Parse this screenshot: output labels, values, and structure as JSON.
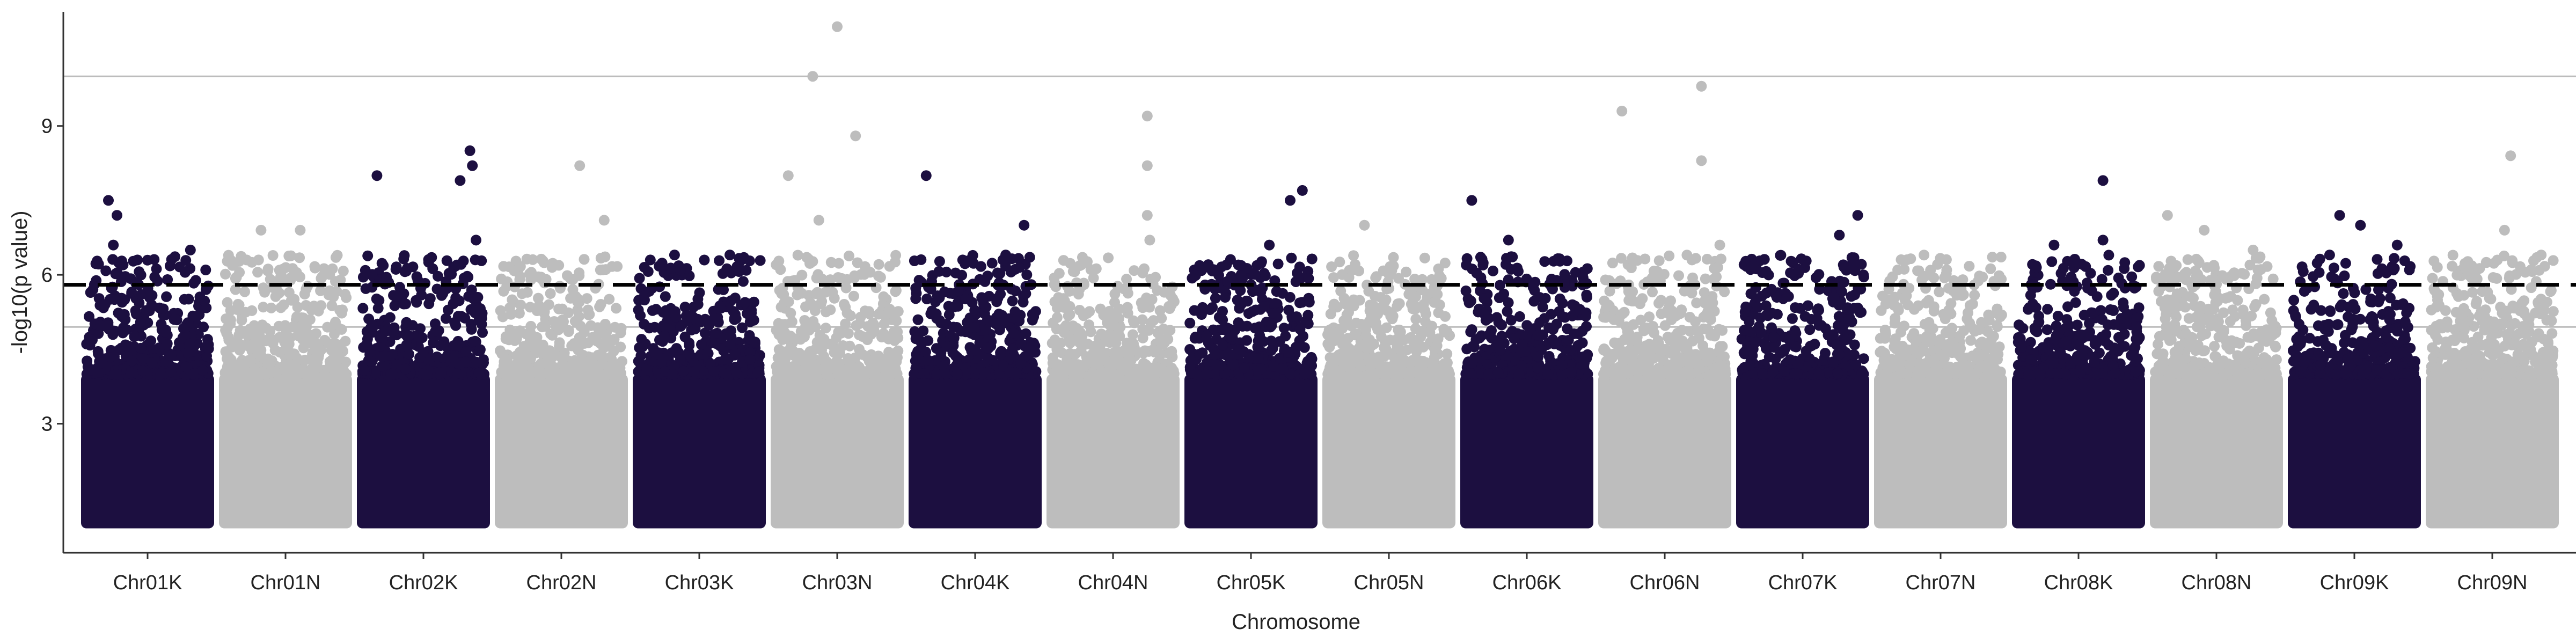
{
  "chart_data": {
    "type": "scatter",
    "subtype": "manhattan",
    "xlabel": "Chromosome",
    "ylabel": "-log10(p value)",
    "categories": [
      "Chr01K",
      "Chr01N",
      "Chr02K",
      "Chr02N",
      "Chr03K",
      "Chr03N",
      "Chr04K",
      "Chr04N",
      "Chr05K",
      "Chr05N",
      "Chr06K",
      "Chr06N",
      "Chr07K",
      "Chr07N",
      "Chr08K",
      "Chr08N",
      "Chr09K",
      "Chr09N"
    ],
    "yticks": [
      "3",
      "6",
      "9"
    ],
    "ylim": [
      0.4,
      11.3
    ],
    "grid": false,
    "legend": "none",
    "point_density_note_free": true,
    "colors": {
      "dark": "#1c0f40",
      "light": "#bdbdbd",
      "axis": "#333333",
      "hline": "#bbbbbb",
      "threshold": "#000000"
    },
    "color_pattern": [
      "dark",
      "light",
      "dark",
      "light",
      "dark",
      "light",
      "dark",
      "light",
      "dark",
      "light",
      "dark",
      "light",
      "dark",
      "light",
      "dark",
      "light",
      "dark",
      "light"
    ],
    "reference_lines": [
      {
        "y": 10.0,
        "style": "solid",
        "color": "hline"
      },
      {
        "y": 5.8,
        "style": "dashed",
        "color": "threshold"
      },
      {
        "y": 4.95,
        "style": "solid",
        "color": "hline"
      }
    ],
    "base_band": {
      "min": 1.0,
      "max": 4.0
    },
    "top_hits": [
      {
        "chr": "Chr01K",
        "pos": 0.18,
        "y": 7.5
      },
      {
        "chr": "Chr01K",
        "pos": 0.25,
        "y": 7.2
      },
      {
        "chr": "Chr01K",
        "pos": 0.22,
        "y": 6.6
      },
      {
        "chr": "Chr01K",
        "pos": 0.85,
        "y": 6.5
      },
      {
        "chr": "Chr01K",
        "pos": 0.3,
        "y": 6.2
      },
      {
        "chr": "Chr01N",
        "pos": 0.3,
        "y": 6.9
      },
      {
        "chr": "Chr01N",
        "pos": 0.62,
        "y": 6.9
      },
      {
        "chr": "Chr01N",
        "pos": 0.28,
        "y": 6.3
      },
      {
        "chr": "Chr02K",
        "pos": 0.12,
        "y": 8.0
      },
      {
        "chr": "Chr02K",
        "pos": 0.88,
        "y": 8.5
      },
      {
        "chr": "Chr02K",
        "pos": 0.8,
        "y": 7.9
      },
      {
        "chr": "Chr02K",
        "pos": 0.9,
        "y": 8.2
      },
      {
        "chr": "Chr02K",
        "pos": 0.93,
        "y": 6.7
      },
      {
        "chr": "Chr02N",
        "pos": 0.65,
        "y": 8.2
      },
      {
        "chr": "Chr02N",
        "pos": 0.85,
        "y": 7.1
      },
      {
        "chr": "Chr03K",
        "pos": 0.1,
        "y": 6.3
      },
      {
        "chr": "Chr03K",
        "pos": 0.75,
        "y": 6.4
      },
      {
        "chr": "Chr03N",
        "pos": 0.1,
        "y": 8.0
      },
      {
        "chr": "Chr03N",
        "pos": 0.3,
        "y": 10.0
      },
      {
        "chr": "Chr03N",
        "pos": 0.5,
        "y": 11.0
      },
      {
        "chr": "Chr03N",
        "pos": 0.65,
        "y": 8.8
      },
      {
        "chr": "Chr03N",
        "pos": 0.35,
        "y": 7.1
      },
      {
        "chr": "Chr04K",
        "pos": 0.1,
        "y": 8.0
      },
      {
        "chr": "Chr04K",
        "pos": 0.9,
        "y": 7.0
      },
      {
        "chr": "Chr04K",
        "pos": 0.75,
        "y": 6.4
      },
      {
        "chr": "Chr04N",
        "pos": 0.78,
        "y": 9.2
      },
      {
        "chr": "Chr04N",
        "pos": 0.78,
        "y": 8.2
      },
      {
        "chr": "Chr04N",
        "pos": 0.78,
        "y": 7.2
      },
      {
        "chr": "Chr04N",
        "pos": 0.8,
        "y": 6.7
      },
      {
        "chr": "Chr05K",
        "pos": 0.82,
        "y": 7.5
      },
      {
        "chr": "Chr05K",
        "pos": 0.92,
        "y": 7.7
      },
      {
        "chr": "Chr05K",
        "pos": 0.65,
        "y": 6.6
      },
      {
        "chr": "Chr05K",
        "pos": 0.3,
        "y": 6.2
      },
      {
        "chr": "Chr05N",
        "pos": 0.3,
        "y": 7.0
      },
      {
        "chr": "Chr06K",
        "pos": 0.05,
        "y": 7.5
      },
      {
        "chr": "Chr06K",
        "pos": 0.35,
        "y": 6.7
      },
      {
        "chr": "Chr06N",
        "pos": 0.15,
        "y": 9.3
      },
      {
        "chr": "Chr06N",
        "pos": 0.8,
        "y": 9.8
      },
      {
        "chr": "Chr06N",
        "pos": 0.8,
        "y": 8.3
      },
      {
        "chr": "Chr06N",
        "pos": 0.95,
        "y": 6.6
      },
      {
        "chr": "Chr07K",
        "pos": 0.95,
        "y": 7.2
      },
      {
        "chr": "Chr07K",
        "pos": 0.8,
        "y": 6.8
      },
      {
        "chr": "Chr07N",
        "pos": 0.55,
        "y": 6.1
      },
      {
        "chr": "Chr08K",
        "pos": 0.3,
        "y": 6.6
      },
      {
        "chr": "Chr08K",
        "pos": 0.7,
        "y": 7.9
      },
      {
        "chr": "Chr08K",
        "pos": 0.7,
        "y": 6.7
      },
      {
        "chr": "Chr08N",
        "pos": 0.1,
        "y": 7.2
      },
      {
        "chr": "Chr08N",
        "pos": 0.4,
        "y": 6.9
      },
      {
        "chr": "Chr08N",
        "pos": 0.8,
        "y": 6.5
      },
      {
        "chr": "Chr09K",
        "pos": 0.38,
        "y": 7.2
      },
      {
        "chr": "Chr09K",
        "pos": 0.55,
        "y": 7.0
      },
      {
        "chr": "Chr09K",
        "pos": 0.85,
        "y": 6.6
      },
      {
        "chr": "Chr09K",
        "pos": 0.95,
        "y": 6.1
      },
      {
        "chr": "Chr09N",
        "pos": 0.65,
        "y": 8.4
      },
      {
        "chr": "Chr09N",
        "pos": 0.6,
        "y": 6.9
      },
      {
        "chr": "Chr09N",
        "pos": 0.9,
        "y": 6.4
      }
    ]
  }
}
